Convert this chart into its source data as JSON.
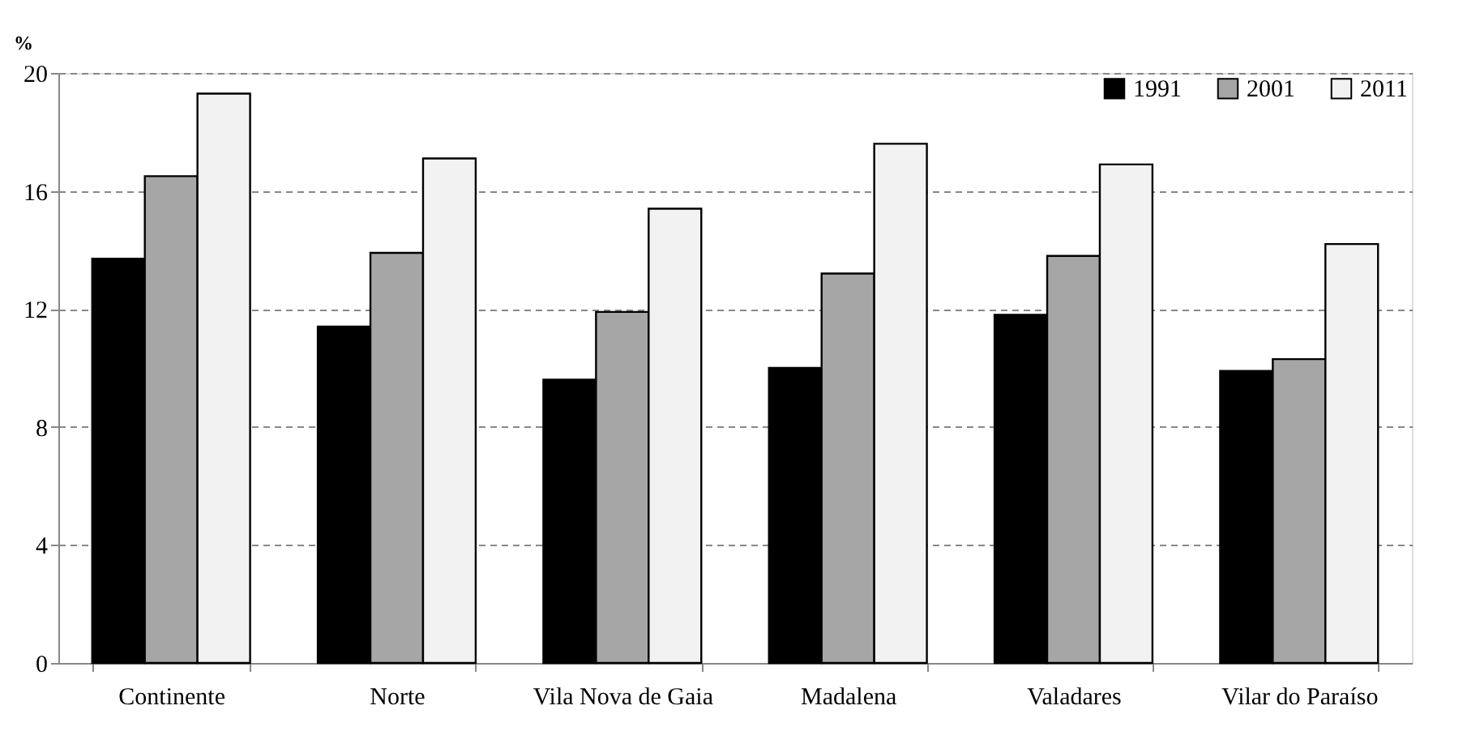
{
  "chart_data": {
    "type": "bar",
    "ylabel": "%",
    "categories": [
      "Continente",
      "Norte",
      "Vila Nova de Gaia",
      "Madalena",
      "Valadares",
      "Vilar do Paraíso"
    ],
    "series": [
      {
        "name": "1991",
        "color": "#000000",
        "values": [
          13.7,
          11.4,
          9.6,
          10.0,
          11.8,
          9.9
        ]
      },
      {
        "name": "2001",
        "color": "#a6a6a6",
        "values": [
          16.5,
          13.9,
          11.9,
          13.2,
          13.8,
          10.3
        ]
      },
      {
        "name": "2011",
        "color": "#f2f2f2",
        "values": [
          19.3,
          17.1,
          15.4,
          17.6,
          16.9,
          14.2
        ]
      }
    ],
    "ylim": [
      0,
      20
    ],
    "yticks": [
      0,
      4,
      8,
      12,
      16,
      20
    ],
    "grid": "y",
    "legend": "top right"
  }
}
